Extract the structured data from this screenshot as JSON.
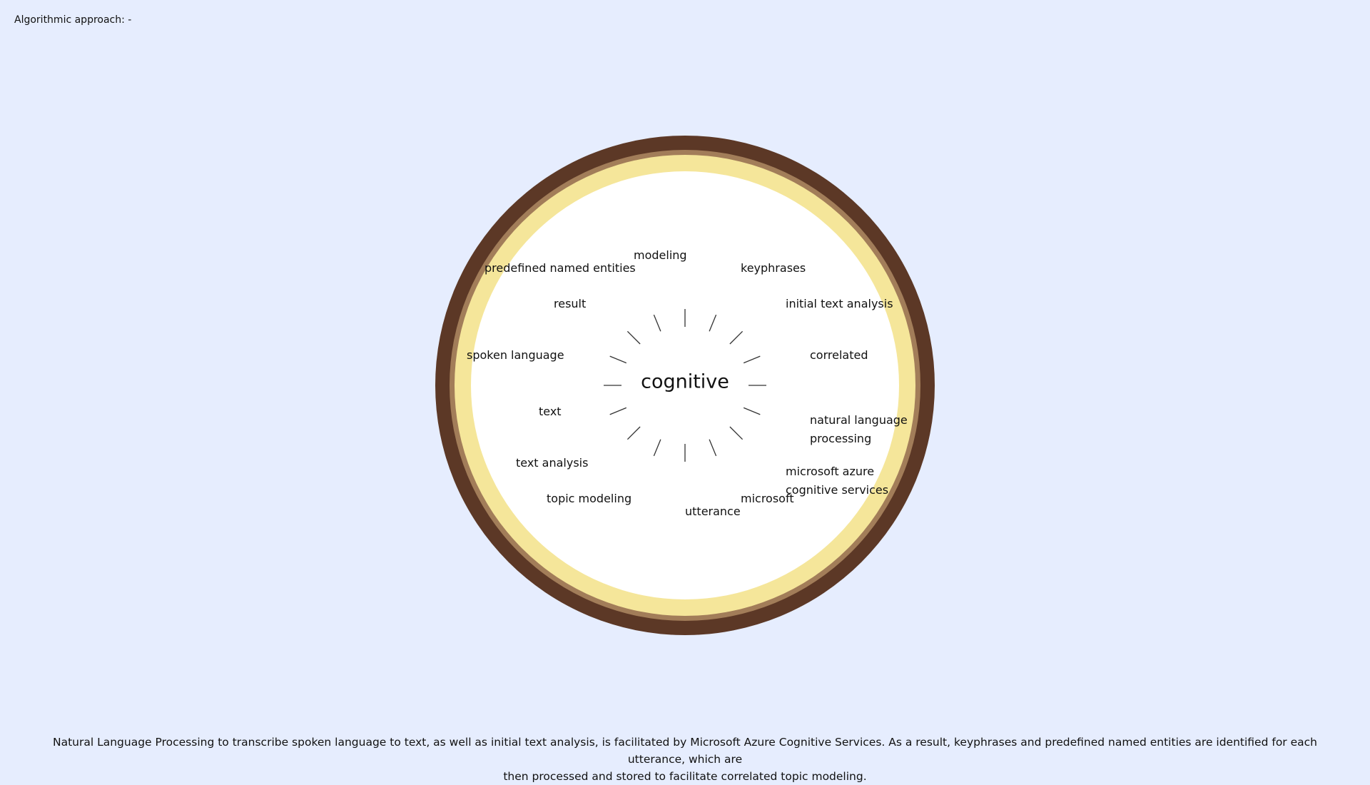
{
  "header": {
    "label": "Algorithmic approach: -"
  },
  "diagram": {
    "center_word": "cognitive",
    "terms": [
      {
        "id": "modeling",
        "lines": [
          "modeling"
        ]
      },
      {
        "id": "predefined-named-entities",
        "lines": [
          "predefined named entities"
        ]
      },
      {
        "id": "keyphrases",
        "lines": [
          "keyphrases"
        ]
      },
      {
        "id": "result",
        "lines": [
          "result"
        ]
      },
      {
        "id": "initial-text-analysis",
        "lines": [
          "initial text analysis"
        ]
      },
      {
        "id": "spoken-language",
        "lines": [
          "spoken language"
        ]
      },
      {
        "id": "correlated",
        "lines": [
          "correlated"
        ]
      },
      {
        "id": "text",
        "lines": [
          "text"
        ]
      },
      {
        "id": "natural-language-processing",
        "lines": [
          "natural language",
          "processing"
        ]
      },
      {
        "id": "text-analysis",
        "lines": [
          "text analysis"
        ]
      },
      {
        "id": "microsoft-azure-cognitive-services",
        "lines": [
          "microsoft azure",
          "cognitive services"
        ]
      },
      {
        "id": "topic-modeling",
        "lines": [
          "topic modeling"
        ]
      },
      {
        "id": "microsoft",
        "lines": [
          "microsoft"
        ]
      },
      {
        "id": "utterance",
        "lines": [
          "utterance"
        ]
      }
    ]
  },
  "caption": {
    "line1": "Natural Language Processing to transcribe spoken language to text, as well as initial text analysis, is facilitated by Microsoft Azure Cognitive Services. As a result, keyphrases and predefined named entities are identified for each utterance, which are",
    "line2": "then processed and stored to facilitate correlated topic modeling."
  },
  "colors": {
    "background": "#e6edfe",
    "ring_outer": "#5c3826",
    "ring_mid": "#a27d59",
    "ring_inner": "#f5e69a",
    "core": "#ffffff"
  }
}
